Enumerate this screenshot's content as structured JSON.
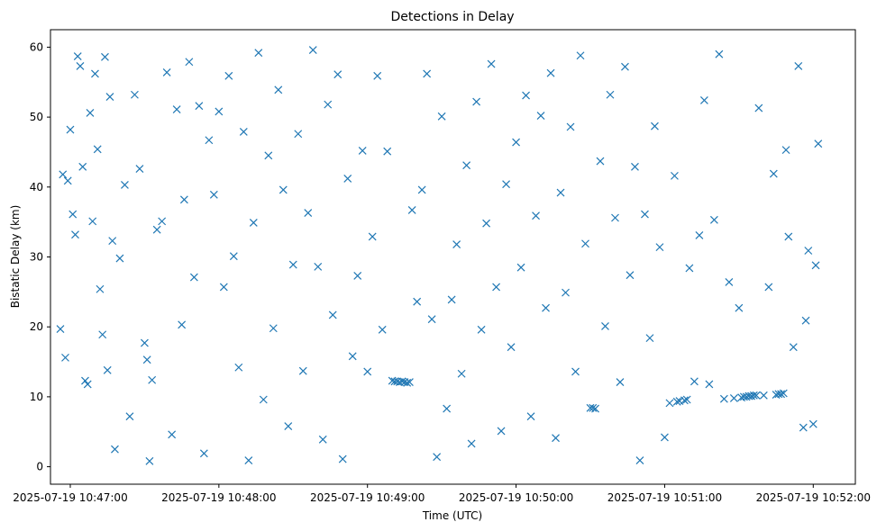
{
  "chart_data": {
    "type": "scatter",
    "title": "Detections in Delay",
    "xlabel": "Time (UTC)",
    "ylabel": "Bistatic Delay (km)",
    "x_ticks": [
      "2025-07-19 10:47:00",
      "2025-07-19 10:48:00",
      "2025-07-19 10:49:00",
      "2025-07-19 10:50:00",
      "2025-07-19 10:51:00",
      "2025-07-19 10:52:00"
    ],
    "y_ticks": [
      "0",
      "10",
      "20",
      "30",
      "40",
      "50",
      "60"
    ],
    "xlim": [
      "2025-07-19 10:46:52",
      "2025-07-19 10:52:17"
    ],
    "ylim": [
      -2.5,
      62.5
    ],
    "marker": "x",
    "grid": false,
    "colors": {
      "series": "#1f77b4"
    },
    "series": [
      {
        "points": [
          [
            "10:46:56",
            19.7
          ],
          [
            "10:46:57",
            41.8
          ],
          [
            "10:46:58",
            15.6
          ],
          [
            "10:46:59",
            40.9
          ],
          [
            "10:47:00",
            48.2
          ],
          [
            "10:47:01",
            36.1
          ],
          [
            "10:47:02",
            33.2
          ],
          [
            "10:47:03",
            58.7
          ],
          [
            "10:47:04",
            57.3
          ],
          [
            "10:47:05",
            42.9
          ],
          [
            "10:47:06",
            12.3
          ],
          [
            "10:47:07",
            11.8
          ],
          [
            "10:47:08",
            50.6
          ],
          [
            "10:47:09",
            35.1
          ],
          [
            "10:47:10",
            56.2
          ],
          [
            "10:47:11",
            45.4
          ],
          [
            "10:47:12",
            25.4
          ],
          [
            "10:47:13",
            18.9
          ],
          [
            "10:47:14",
            58.6
          ],
          [
            "10:47:15",
            13.8
          ],
          [
            "10:47:16",
            52.9
          ],
          [
            "10:47:17",
            32.3
          ],
          [
            "10:47:18",
            2.5
          ],
          [
            "10:47:20",
            29.8
          ],
          [
            "10:47:22",
            40.3
          ],
          [
            "10:47:24",
            7.2
          ],
          [
            "10:47:26",
            53.2
          ],
          [
            "10:47:28",
            42.6
          ],
          [
            "10:47:30",
            17.7
          ],
          [
            "10:47:31",
            15.3
          ],
          [
            "10:47:32",
            0.8
          ],
          [
            "10:47:33",
            12.4
          ],
          [
            "10:47:35",
            33.9
          ],
          [
            "10:47:37",
            35.1
          ],
          [
            "10:47:39",
            56.4
          ],
          [
            "10:47:41",
            4.6
          ],
          [
            "10:47:43",
            51.1
          ],
          [
            "10:47:45",
            20.3
          ],
          [
            "10:47:46",
            38.2
          ],
          [
            "10:47:48",
            57.9
          ],
          [
            "10:47:50",
            27.1
          ],
          [
            "10:47:52",
            51.6
          ],
          [
            "10:47:54",
            1.9
          ],
          [
            "10:47:56",
            46.7
          ],
          [
            "10:47:58",
            38.9
          ],
          [
            "10:48:00",
            50.8
          ],
          [
            "10:48:02",
            25.7
          ],
          [
            "10:48:04",
            55.9
          ],
          [
            "10:48:06",
            30.1
          ],
          [
            "10:48:08",
            14.2
          ],
          [
            "10:48:10",
            47.9
          ],
          [
            "10:48:12",
            0.9
          ],
          [
            "10:48:14",
            34.9
          ],
          [
            "10:48:16",
            59.2
          ],
          [
            "10:48:18",
            9.6
          ],
          [
            "10:48:20",
            44.5
          ],
          [
            "10:48:22",
            19.8
          ],
          [
            "10:48:24",
            53.9
          ],
          [
            "10:48:26",
            39.6
          ],
          [
            "10:48:28",
            5.8
          ],
          [
            "10:48:30",
            28.9
          ],
          [
            "10:48:32",
            47.6
          ],
          [
            "10:48:34",
            13.7
          ],
          [
            "10:48:36",
            36.3
          ],
          [
            "10:48:38",
            59.6
          ],
          [
            "10:48:40",
            28.6
          ],
          [
            "10:48:42",
            3.9
          ],
          [
            "10:48:44",
            51.8
          ],
          [
            "10:48:46",
            21.7
          ],
          [
            "10:48:48",
            56.1
          ],
          [
            "10:48:50",
            1.1
          ],
          [
            "10:48:52",
            41.2
          ],
          [
            "10:48:54",
            15.8
          ],
          [
            "10:48:56",
            27.3
          ],
          [
            "10:48:58",
            45.2
          ],
          [
            "10:49:00",
            13.6
          ],
          [
            "10:49:02",
            32.9
          ],
          [
            "10:49:04",
            55.9
          ],
          [
            "10:49:06",
            19.6
          ],
          [
            "10:49:08",
            45.1
          ],
          [
            "10:49:10",
            12.3
          ],
          [
            "10:49:11",
            12.2
          ],
          [
            "10:49:12",
            12.2
          ],
          [
            "10:49:13",
            12.1
          ],
          [
            "10:49:14",
            12.2
          ],
          [
            "10:49:15",
            12.1
          ],
          [
            "10:49:16",
            12.0
          ],
          [
            "10:49:17",
            12.1
          ],
          [
            "10:49:18",
            36.7
          ],
          [
            "10:49:20",
            23.6
          ],
          [
            "10:49:22",
            39.6
          ],
          [
            "10:49:24",
            56.2
          ],
          [
            "10:49:26",
            21.1
          ],
          [
            "10:49:28",
            1.4
          ],
          [
            "10:49:30",
            50.1
          ],
          [
            "10:49:32",
            8.3
          ],
          [
            "10:49:34",
            23.9
          ],
          [
            "10:49:36",
            31.8
          ],
          [
            "10:49:38",
            13.3
          ],
          [
            "10:49:40",
            43.1
          ],
          [
            "10:49:42",
            3.3
          ],
          [
            "10:49:44",
            52.2
          ],
          [
            "10:49:46",
            19.6
          ],
          [
            "10:49:48",
            34.8
          ],
          [
            "10:49:50",
            57.6
          ],
          [
            "10:49:52",
            25.7
          ],
          [
            "10:49:54",
            5.1
          ],
          [
            "10:49:56",
            40.4
          ],
          [
            "10:49:58",
            17.1
          ],
          [
            "10:50:00",
            46.4
          ],
          [
            "10:50:02",
            28.5
          ],
          [
            "10:50:04",
            53.1
          ],
          [
            "10:50:06",
            7.2
          ],
          [
            "10:50:08",
            35.9
          ],
          [
            "10:50:10",
            50.2
          ],
          [
            "10:50:12",
            22.7
          ],
          [
            "10:50:14",
            56.3
          ],
          [
            "10:50:16",
            4.1
          ],
          [
            "10:50:18",
            39.2
          ],
          [
            "10:50:20",
            24.9
          ],
          [
            "10:50:22",
            48.6
          ],
          [
            "10:50:24",
            13.6
          ],
          [
            "10:50:26",
            58.8
          ],
          [
            "10:50:28",
            31.9
          ],
          [
            "10:50:30",
            8.4
          ],
          [
            "10:50:31",
            8.4
          ],
          [
            "10:50:32",
            8.3
          ],
          [
            "10:50:34",
            43.7
          ],
          [
            "10:50:36",
            20.1
          ],
          [
            "10:50:38",
            53.2
          ],
          [
            "10:50:40",
            35.6
          ],
          [
            "10:50:42",
            12.1
          ],
          [
            "10:50:44",
            57.2
          ],
          [
            "10:50:46",
            27.4
          ],
          [
            "10:50:48",
            42.9
          ],
          [
            "10:50:50",
            0.9
          ],
          [
            "10:50:52",
            36.1
          ],
          [
            "10:50:54",
            18.4
          ],
          [
            "10:50:56",
            48.7
          ],
          [
            "10:50:58",
            31.4
          ],
          [
            "10:51:00",
            4.2
          ],
          [
            "10:51:02",
            9.1
          ],
          [
            "10:51:04",
            41.6
          ],
          [
            "10:51:05",
            9.3
          ],
          [
            "10:51:06",
            9.4
          ],
          [
            "10:51:08",
            9.5
          ],
          [
            "10:51:09",
            9.6
          ],
          [
            "10:51:10",
            28.4
          ],
          [
            "10:51:12",
            12.2
          ],
          [
            "10:51:14",
            33.1
          ],
          [
            "10:51:16",
            52.4
          ],
          [
            "10:51:18",
            11.8
          ],
          [
            "10:51:20",
            35.3
          ],
          [
            "10:51:22",
            59.0
          ],
          [
            "10:51:24",
            9.7
          ],
          [
            "10:51:26",
            26.4
          ],
          [
            "10:51:28",
            9.8
          ],
          [
            "10:51:30",
            22.7
          ],
          [
            "10:51:31",
            9.9
          ],
          [
            "10:51:32",
            10.0
          ],
          [
            "10:51:33",
            10.0
          ],
          [
            "10:51:34",
            10.1
          ],
          [
            "10:51:35",
            10.1
          ],
          [
            "10:51:36",
            10.2
          ],
          [
            "10:51:37",
            10.2
          ],
          [
            "10:51:38",
            51.3
          ],
          [
            "10:51:40",
            10.2
          ],
          [
            "10:51:42",
            25.7
          ],
          [
            "10:51:44",
            41.9
          ],
          [
            "10:51:45",
            10.3
          ],
          [
            "10:51:46",
            10.4
          ],
          [
            "10:51:47",
            10.4
          ],
          [
            "10:51:48",
            10.5
          ],
          [
            "10:51:49",
            45.3
          ],
          [
            "10:51:50",
            32.9
          ],
          [
            "10:51:52",
            17.1
          ],
          [
            "10:51:54",
            57.3
          ],
          [
            "10:51:56",
            5.6
          ],
          [
            "10:51:57",
            20.9
          ],
          [
            "10:51:58",
            30.9
          ],
          [
            "10:52:00",
            6.1
          ],
          [
            "10:52:01",
            28.8
          ],
          [
            "10:52:02",
            46.2
          ]
        ]
      }
    ]
  }
}
